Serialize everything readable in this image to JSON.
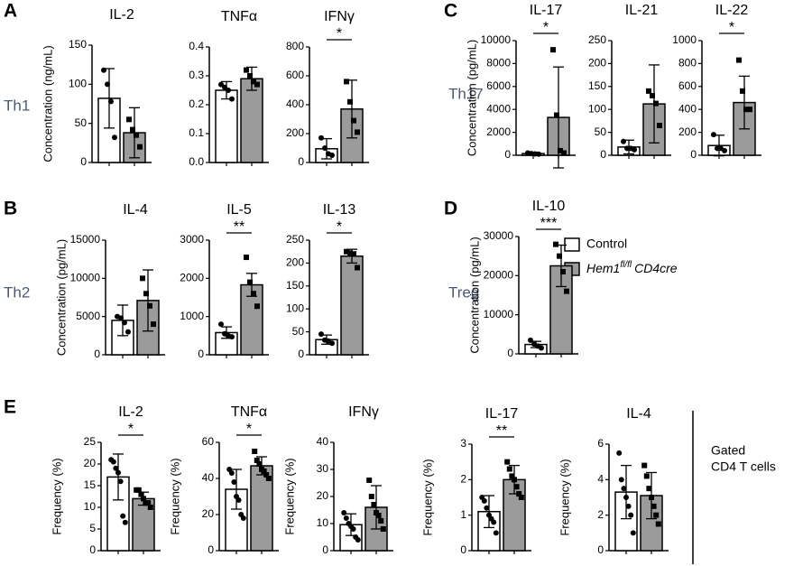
{
  "chart_data": [
    {
      "type": "bar",
      "title": "IL-2",
      "ylabel": "Concentration (ng/mL)",
      "categories": [
        null,
        null
      ],
      "values": [
        82,
        38
      ],
      "errors": [
        38,
        32
      ],
      "points": [
        [
          118,
          100,
          78,
          32
        ],
        [
          55,
          42,
          35,
          20
        ]
      ],
      "ylim": [
        0,
        150
      ],
      "yticks": [
        0,
        50,
        100,
        150
      ]
    },
    {
      "type": "bar",
      "title": "TNFα",
      "categories": [
        null,
        null
      ],
      "values": [
        0.25,
        0.29
      ],
      "errors": [
        0.03,
        0.04
      ],
      "points": [
        [
          0.27,
          0.26,
          0.25,
          0.22
        ],
        [
          0.32,
          0.3,
          0.28,
          0.27
        ]
      ],
      "ylim": [
        0,
        0.4
      ],
      "yticks": [
        {
          "value": 0,
          "label": "0.0"
        },
        0.1,
        0.2,
        0.3,
        0.4
      ]
    },
    {
      "type": "bar",
      "title": "IFNγ",
      "categories": [
        null,
        null
      ],
      "values": [
        95,
        370
      ],
      "errors": [
        70,
        200
      ],
      "points": [
        [
          170,
          100,
          60,
          50
        ],
        [
          560,
          420,
          290,
          210
        ]
      ],
      "ylim": [
        0,
        800
      ],
      "yticks": [
        0,
        200,
        400,
        600,
        800
      ],
      "significance": "*"
    },
    {
      "type": "bar",
      "title": "IL-4",
      "ylabel": "Concentration (pg/mL)",
      "categories": [
        null,
        null
      ],
      "values": [
        4500,
        7100
      ],
      "errors": [
        2000,
        4000
      ],
      "points": [
        [
          5000,
          4800,
          4200,
          3000
        ],
        [
          10000,
          8000,
          6400,
          4000
        ]
      ],
      "ylim": [
        0,
        15000
      ],
      "yticks": [
        0,
        5000,
        10000,
        15000
      ]
    },
    {
      "type": "bar",
      "title": "IL-5",
      "categories": [
        null,
        null
      ],
      "values": [
        580,
        1830
      ],
      "errors": [
        150,
        300
      ],
      "points": [
        [
          800,
          550,
          500,
          470
        ],
        [
          2550,
          1900,
          1600,
          1270
        ]
      ],
      "ylim": [
        0,
        3000
      ],
      "yticks": [
        0,
        1000,
        2000,
        3000
      ],
      "significance": "**"
    },
    {
      "type": "bar",
      "title": "IL-13",
      "categories": [
        null,
        null
      ],
      "values": [
        33,
        215
      ],
      "errors": [
        10,
        15
      ],
      "points": [
        [
          45,
          32,
          30,
          25
        ],
        [
          225,
          222,
          220,
          190
        ]
      ],
      "ylim": [
        0,
        250
      ],
      "yticks": [
        0,
        50,
        100,
        150,
        200,
        250
      ],
      "significance": "*"
    },
    {
      "type": "bar",
      "title": "IL-17",
      "ylabel": "Concentration (pg/mL)",
      "categories": [
        null,
        null
      ],
      "values": [
        150,
        3300
      ],
      "errors": [
        100,
        4400
      ],
      "points": [
        [
          200,
          150,
          120,
          100
        ],
        [
          9200,
          3500,
          400,
          200
        ]
      ],
      "ylim": [
        0,
        10000
      ],
      "yticks": [
        0,
        2000,
        4000,
        6000,
        8000,
        10000
      ],
      "significance": "*"
    },
    {
      "type": "bar",
      "title": "IL-21",
      "categories": [
        null,
        null
      ],
      "values": [
        18,
        112
      ],
      "errors": [
        15,
        85
      ],
      "points": [
        [
          30,
          15,
          15,
          12
        ],
        [
          140,
          130,
          113,
          65
        ]
      ],
      "ylim": [
        0,
        250
      ],
      "yticks": [
        0,
        50,
        100,
        150,
        200,
        250
      ]
    },
    {
      "type": "bar",
      "title": "IL-22",
      "categories": [
        null,
        null
      ],
      "values": [
        85,
        460
      ],
      "errors": [
        90,
        230
      ],
      "points": [
        [
          180,
          60,
          60,
          40
        ],
        [
          830,
          560,
          400,
          400
        ]
      ],
      "ylim": [
        0,
        1000
      ],
      "yticks": [
        0,
        200,
        400,
        600,
        800,
        1000
      ],
      "significance": "*"
    },
    {
      "type": "bar",
      "title": "IL-10",
      "ylabel": "Concentration (pg/mL)",
      "categories": [
        null,
        null
      ],
      "values": [
        2400,
        22500
      ],
      "errors": [
        800,
        5300
      ],
      "points": [
        [
          3500,
          2500,
          2000,
          1500
        ],
        [
          28000,
          25000,
          21000,
          16000
        ]
      ],
      "ylim": [
        0,
        30000
      ],
      "yticks": [
        0,
        10000,
        20000,
        30000
      ],
      "significance": "***"
    },
    {
      "type": "bar",
      "title": "IL-2",
      "ylabel": "Frequency (%)",
      "categories": [
        null,
        null
      ],
      "values": [
        17,
        12
      ],
      "errors": [
        5.3,
        1.5
      ],
      "points": [
        [
          21,
          20.5,
          19,
          18,
          16,
          8,
          6.5
        ],
        [
          14,
          14,
          13,
          12,
          11,
          11,
          10
        ]
      ],
      "ylim": [
        0,
        25
      ],
      "yticks": [
        0,
        5,
        10,
        15,
        20,
        25
      ],
      "significance": "*"
    },
    {
      "type": "bar",
      "title": "TNFα",
      "ylabel": "Frequency (%)",
      "categories": [
        null,
        null
      ],
      "values": [
        34,
        47
      ],
      "errors": [
        11,
        5
      ],
      "points": [
        [
          45,
          43,
          38,
          30,
          28,
          20,
          18
        ],
        [
          55,
          50,
          48,
          45,
          44,
          42,
          40
        ]
      ],
      "ylim": [
        0,
        60
      ],
      "yticks": [
        0,
        20,
        40,
        60
      ],
      "significance": "*"
    },
    {
      "type": "bar",
      "title": "IFNγ",
      "ylabel": "Frequency (%)",
      "categories": [
        null,
        null
      ],
      "values": [
        9.6,
        16
      ],
      "errors": [
        4,
        8
      ],
      "points": [
        [
          14,
          12,
          10,
          9,
          8,
          5,
          4
        ],
        [
          26,
          20,
          17,
          14,
          13,
          11,
          8
        ]
      ],
      "ylim": [
        0,
        40
      ],
      "yticks": [
        0,
        10,
        20,
        30,
        40
      ]
    },
    {
      "type": "bar",
      "title": "IL-17",
      "ylabel": "Frequency (%)",
      "categories": [
        null,
        null
      ],
      "values": [
        1.1,
        2.0
      ],
      "errors": [
        0.45,
        0.4
      ],
      "points": [
        [
          1.5,
          1.4,
          1.2,
          1.0,
          0.9,
          0.8,
          0.5
        ],
        [
          2.5,
          2.3,
          2.1,
          2.0,
          1.8,
          1.6,
          1.5
        ]
      ],
      "ylim": [
        0,
        3
      ],
      "yticks": [
        0,
        1,
        2,
        3
      ],
      "significance": "**"
    },
    {
      "type": "bar",
      "title": "IL-4",
      "ylabel": "Frequency (%)",
      "categories": [
        null,
        null
      ],
      "values": [
        3.3,
        3.1
      ],
      "errors": [
        1.5,
        1.3
      ],
      "points": [
        [
          5.5,
          4,
          3.5,
          3,
          2.5,
          2,
          1
        ],
        [
          4.8,
          4.2,
          3.5,
          3,
          2.5,
          2,
          1.5
        ]
      ],
      "ylim": [
        0,
        6
      ],
      "yticks": [
        0,
        2,
        4,
        6
      ]
    }
  ],
  "panel_labels": [
    "A",
    "B",
    "C",
    "D",
    "E"
  ],
  "row_labels": [
    "Th1",
    "Th2",
    "Th17",
    "Treg"
  ],
  "side_label": [
    "Gated",
    "CD4 T cells"
  ],
  "legend": [
    {
      "name": "Control",
      "color": "#ffffff",
      "marker": "circle"
    },
    {
      "name_parts": [
        "Hem1",
        "fl/fl",
        "CD4cre"
      ],
      "color": "#9b9b9b",
      "marker": "square"
    }
  ]
}
